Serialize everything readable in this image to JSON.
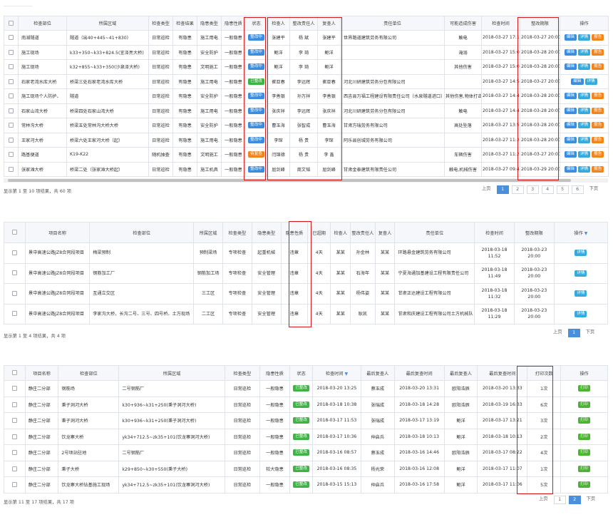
{
  "t1": {
    "headers": [
      "检查部位",
      "所属区域",
      "检查类型",
      "检查结果",
      "隐患类型",
      "隐患性质",
      "状态",
      "检查人",
      "整改责任人",
      "复查人",
      "责任单位",
      "可能造成伤害",
      "检查时间",
      "整改期限",
      "操作"
    ],
    "rows": [
      [
        "南湖隧道",
        "隧道（出40+445~41+830）",
        "日常巡检",
        "有隐患",
        "施工用电",
        "一般隐患",
        "整改中",
        "张建平",
        "杨 斌",
        "张建平",
        "世界路道建筑劳务有限公司",
        "触电",
        "2018-03-27 17:13",
        "2018-03-27 20:00"
      ],
      [
        "施工现场",
        "k33+350~k33+824.5(宜泽亮大桥)",
        "日常巡检",
        "有隐患",
        "安全防护",
        "一般隐患",
        "整改中",
        "鲍洋",
        "李 琦",
        "鲍洋",
        "",
        "淹溺",
        "2018-03-27 15:02",
        "2018-03-28 20:00"
      ],
      [
        "施工现场",
        "k32+855~k33+350(沙泉泽大桥)",
        "日常巡检",
        "有隐患",
        "文明施工",
        "一般隐患",
        "整改中",
        "鲍洋",
        "李 琦",
        "鲍洋",
        "",
        "其他伤害",
        "2018-03-27 15:00",
        "2018-03-28 20:00"
      ],
      [
        "石家老湾水库大桥",
        "桥梁三处石家老湾水库大桥",
        "日常巡检",
        "有隐患",
        "施工用电",
        "一般隐患",
        "已整改",
        "崔亚春",
        "李远辉",
        "崔亚春",
        "河北川研建筑劳务分包有限公司",
        "",
        "2018-03-27 14:56",
        "2018-03-27 20:00"
      ],
      [
        "施工现场个人防护、",
        "隧道",
        "日常巡检",
        "有隐患",
        "安全防护",
        "一般隐患",
        "整改中",
        "李善银",
        "孙万祥",
        "李善银",
        "西吉县万福工程建设有限责任公司（水泉隧道进口）",
        "其他伤害,物体打击",
        "2018-03-27 14:45",
        "2018-03-28 20:00"
      ],
      [
        "石家山湾大桥",
        "桥梁四处石家山湾大桥",
        "日常巡检",
        "有隐患",
        "施工用电",
        "一般隐患",
        "整改中",
        "张庆祥",
        "李远辉",
        "张庆祥",
        "河北川研建筑劳务分包有限公司",
        "触电",
        "2018-03-27 14:41",
        "2018-03-28 20:00"
      ],
      [
        "常林沟大桥",
        "桥梁五处常林沟大桥大桥",
        "日常巡检",
        "有隐患",
        "安全防护",
        "一般隐患",
        "整改中",
        "曹玉海",
        "张智成",
        "曹玉海",
        "甘肃方瑞劳务有限公司",
        "高处坠落",
        "2018-03-27 13:51",
        "2018-03-28 20:00"
      ],
      [
        "王家河大桥",
        "桥梁六处王家河大桥（起）",
        "日常巡检",
        "有隐患",
        "施工用电",
        "一般隐患",
        "整改中",
        "李琛",
        "杨 贵",
        "李琛",
        "阿乐县创城劳务有限公司",
        "",
        "2018-03-27 11:30",
        "2018-03-28 20:00"
      ],
      [
        "路基便道",
        "K19-K22",
        "随机抽查",
        "有隐患",
        "文明施工",
        "一般隐患",
        "待复查",
        "闫锦德",
        "杨 贵",
        "李 鑫",
        "",
        "车辆伤害",
        "2018-03-27 11:28",
        "2018-03-27 20:00"
      ],
      [
        "张家滩大桥",
        "桥梁二处（张家滩大桥起）",
        "日常巡检",
        "有隐患",
        "施工机具",
        "一般隐患",
        "整改中",
        "屈剑峰",
        "周文韬",
        "屈剑峰",
        "甘肃金泰建筑有限责任公司",
        "触电,机械伤害",
        "2018-03-27 09:48",
        "2018-03-29 20:00"
      ]
    ],
    "info": "显示第 1 至 10 项结果，共 60 项",
    "pager": [
      "上页",
      "1",
      "2",
      "3",
      "4",
      "5",
      "6",
      "下页"
    ]
  },
  "t2": {
    "headers": [
      "项目名称",
      "检查部位",
      "所属区域",
      "检查类型",
      "隐患类型",
      "隐患性质",
      "已超期",
      "检查人",
      "整改责任人",
      "复查人",
      "责任单位",
      "检查时间",
      "整改期限",
      "操作"
    ],
    "rows": [
      [
        "景中高速公路JZ8合同段项目",
        "梅梁预制",
        "预制梁场",
        "专项检查",
        "起重机械",
        "违章",
        "4天",
        "某某",
        "孙金林",
        "某某",
        "环路悬金建筑劳务有限公司",
        "2018-03-18 11:52",
        "2018-03-23 20:00"
      ],
      [
        "景中高速公路JZ8合同段项目",
        "钢筋加工厂",
        "钢筋加工场",
        "专项检查",
        "安全管理",
        "违章",
        "4天",
        "某某",
        "石海年",
        "某某",
        "宁夏海通加基建设工程有限责任公司",
        "2018-03-18 11:49",
        "2018-03-23 20:00"
      ],
      [
        "景中高速公路JZ8合同段项目",
        "互通立交区",
        "三工区",
        "专项检查",
        "安全管理",
        "违章",
        "4天",
        "某某",
        "杨伟姿",
        "某某",
        "甘肃正达建设工程有限公司",
        "2018-03-18 11:32",
        "2018-03-23 20:00"
      ],
      [
        "景中高速公路JZ8合同段项目",
        "李家沟大桥，长沟二号、三号、四号桥、土方现场",
        "二工区",
        "专项检查",
        "安全管理",
        "违章",
        "4天",
        "某某",
        "耿凯",
        "某某",
        "甘肃和庆建设工程有限公司土方机械队",
        "2018-03-18 11:29",
        "2018-03-23 20:00"
      ]
    ],
    "info": "显示第 1 至 4 项结果，共 4 项",
    "pager": [
      "上页",
      "1",
      "下页"
    ]
  },
  "t3": {
    "headers": [
      "项目名称",
      "检查部位",
      "所属区域",
      "检查类型",
      "隐患性质",
      "状态",
      "检查时间",
      "最后复查人",
      "最后复查时间",
      "最后复查人",
      "最后复查时间",
      "打印次数",
      "操作"
    ],
    "rows": [
      [
        "静庄二分部",
        "钢筋场",
        "二号钢筋厂",
        "日常巡检",
        "一般隐患",
        "已整改",
        "2018-03-20 13:25",
        "蔡玉成",
        "2018-03-20 13:31",
        "欧阳浩辰",
        "2018-03-20 13:33",
        "1次"
      ],
      [
        "静庄二分部",
        "秉子洞河大桥",
        "k30+936~k31+250(秉子洞河大桥)",
        "日常巡检",
        "一般隐患",
        "已整改",
        "2018-03-18 10:38",
        "张瑞成",
        "2018-03-18 14:28",
        "欧阳浩辰",
        "2018-03-19 16:33",
        "6次"
      ],
      [
        "静庄二分部",
        "秉子洞河大桥",
        "k30+936~k31+250(秉子洞河大桥)",
        "日常巡检",
        "一般隐患",
        "已整改",
        "2018-03-17 11:53",
        "张瑞成",
        "2018-03-17 13:19",
        "鲍洋",
        "2018-03-17 13:21",
        "3次"
      ],
      [
        "静庄二分部",
        "饮龙寨大桥",
        "yk34+712.5~zk35+101(饮龙寨洞河大桥)",
        "日常巡检",
        "一般隐患",
        "已整改",
        "2018-03-17 10:36",
        "仲启兵",
        "2018-03-18 10:13",
        "鲍洋",
        "2018-03-18 10:13",
        "2次"
      ],
      [
        "静庄二分部",
        "2号项站驻地",
        "二号钢筋厂",
        "日常巡检",
        "一般隐患",
        "已整改",
        "2018-03-16 08:57",
        "蔡玉成",
        "2018-03-16 14:46",
        "欧阳浩辰",
        "2018-03-17 08:22",
        "4次"
      ],
      [
        "静庄二分部",
        "秉子大桥",
        "k29+850~k30+550(秉子大桥)",
        "日常巡检",
        "较大隐患",
        "已整改",
        "2018-03-16 08:35",
        "杨光荣",
        "2018-03-16 12:08",
        "鲍洋",
        "2018-03-17 11:07",
        "1次"
      ],
      [
        "静庄二分部",
        "饮龙寨大桥钻基施工现场",
        "yk34+712.5~zk35+101(饮龙寨洞河大桥)",
        "日常巡检",
        "一般隐患",
        "已整改",
        "2018-03-15 15:13",
        "仲启兵",
        "2018-03-16 17:58",
        "鲍洋",
        "2018-03-17 11:06",
        "5次"
      ]
    ],
    "info": "显示第 11 至 17 项结果，共 17 项",
    "pager": [
      "上页",
      "1",
      "2",
      "下页"
    ]
  },
  "labels": {
    "edit": "编辑",
    "detail": "详情",
    "report": "报告",
    "print": "打印"
  },
  "colors": {
    "accent": "#3c8dde",
    "highlight_border": "#d31a1a",
    "status_pending": "#3c8dde",
    "status_done": "#3db443",
    "status_review": "#f0851e"
  }
}
